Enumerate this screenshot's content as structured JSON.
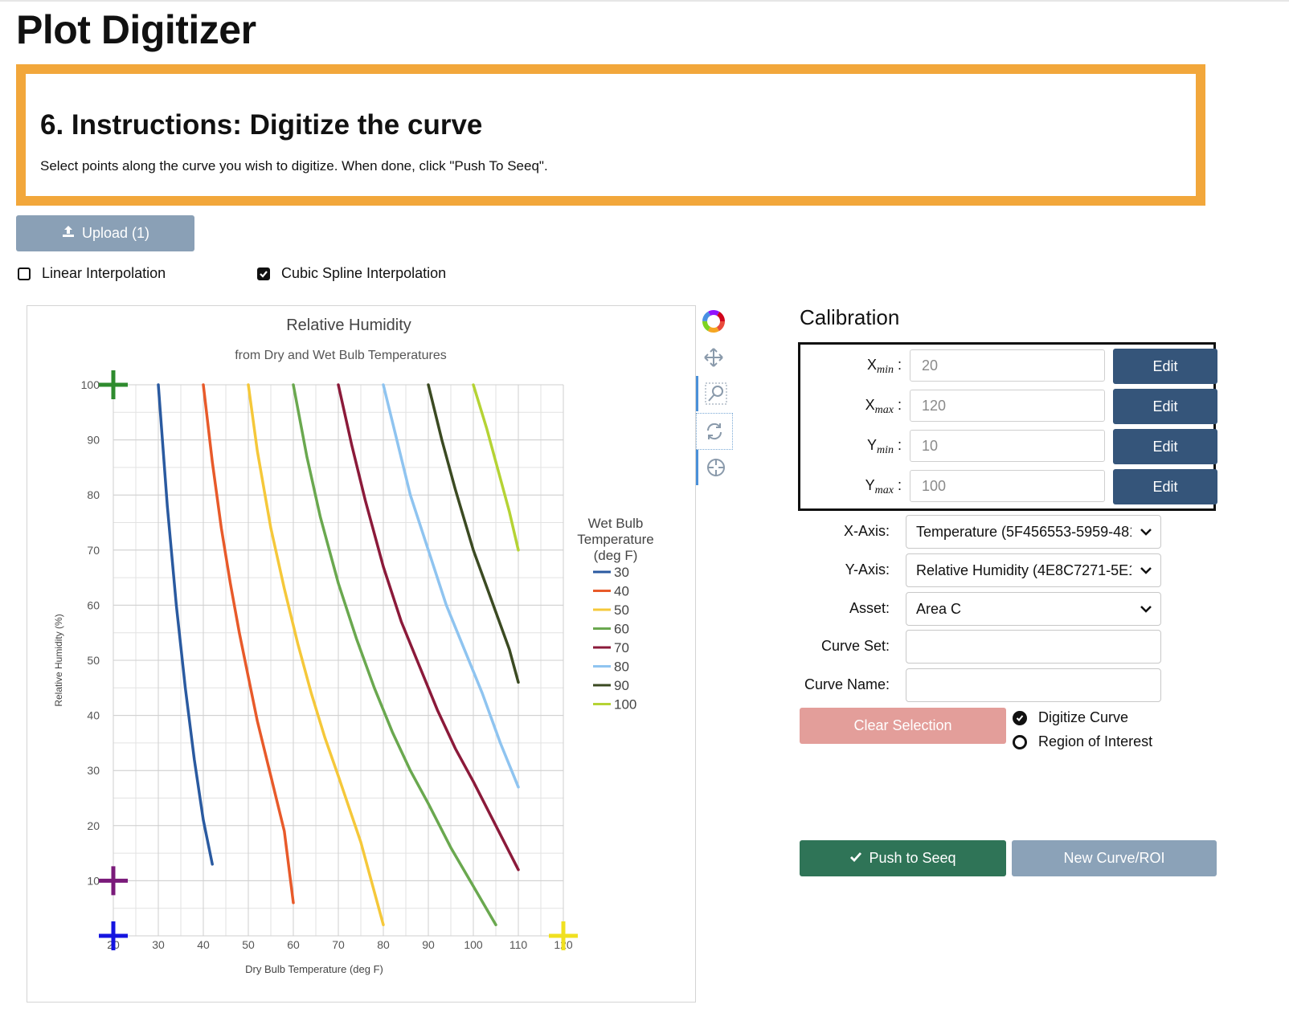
{
  "app": {
    "title": "Plot Digitizer"
  },
  "instructions": {
    "title": "6. Instructions: Digitize the curve",
    "text": "Select points along the curve you wish to digitize. When done, click \"Push To Seeq\"."
  },
  "upload": {
    "label": "Upload (1)",
    "icon": "upload-icon"
  },
  "interpolation": {
    "linear": {
      "label": "Linear Interpolation",
      "checked": false
    },
    "cubic": {
      "label": "Cubic Spline Interpolation",
      "checked": true
    }
  },
  "toolbar": {
    "tools": [
      "color-wheel-icon",
      "pan-arrows-icon",
      "zoom-box-icon",
      "reset-rotate-icon",
      "crosshair-icon"
    ]
  },
  "calibration": {
    "title": "Calibration",
    "rows": [
      {
        "sym": "X",
        "sub": "min",
        "value": "20",
        "edit": "Edit"
      },
      {
        "sym": "X",
        "sub": "max",
        "value": "120",
        "edit": "Edit"
      },
      {
        "sym": "Y",
        "sub": "min",
        "value": "10",
        "edit": "Edit"
      },
      {
        "sym": "Y",
        "sub": "max",
        "value": "100",
        "edit": "Edit"
      }
    ]
  },
  "form": {
    "x_axis": {
      "label": "X-Axis:",
      "value": "Temperature (5F456553-5959-481"
    },
    "y_axis": {
      "label": "Y-Axis:",
      "value": "Relative Humidity (4E8C7271-5E1"
    },
    "asset": {
      "label": "Asset:",
      "value": "Area C"
    },
    "curve_set": {
      "label": "Curve Set:",
      "value": ""
    },
    "curve_name": {
      "label": "Curve Name:",
      "value": ""
    }
  },
  "actions": {
    "clear": "Clear Selection",
    "mode_digitize": "Digitize Curve",
    "mode_roi": "Region of Interest",
    "push": "Push to Seeq",
    "new": "New Curve/ROI"
  },
  "colors": {
    "instruction_border": "#f2a73b",
    "edit_button": "#35557a",
    "push_button": "#2f7457",
    "clear_button": "#e39e9a",
    "muted_button": "#8ba2b8"
  },
  "chart_data": {
    "type": "line",
    "title": "Relative Humidity",
    "subtitle": "from Dry and Wet Bulb Temperatures",
    "xlabel": "Dry Bulb Temperature (deg F)",
    "ylabel": "Relative Humidity (%)",
    "xlim": [
      20,
      120
    ],
    "ylim": [
      0,
      100
    ],
    "xticks": [
      "20",
      "30",
      "40",
      "50",
      "60",
      "70",
      "80",
      "90",
      "100",
      "110",
      "120"
    ],
    "yticks": [
      "10",
      "20",
      "30",
      "40",
      "50",
      "60",
      "70",
      "80",
      "90",
      "100"
    ],
    "grid": true,
    "legend_title": "Wet Bulb Temperature (deg F)",
    "legend_position": "right",
    "series": [
      {
        "name": "30",
        "color": "#2a5aa0",
        "x": [
          30,
          32,
          34,
          36,
          38,
          40,
          42
        ],
        "y": [
          100,
          78,
          60,
          45,
          32,
          21,
          13
        ]
      },
      {
        "name": "40",
        "color": "#e85a2a",
        "x": [
          40,
          42,
          44,
          46,
          48,
          50,
          52,
          55,
          58,
          60
        ],
        "y": [
          100,
          86,
          74,
          64,
          55,
          47,
          39,
          29,
          19,
          6
        ]
      },
      {
        "name": "50",
        "color": "#f5c83a",
        "x": [
          50,
          52,
          55,
          58,
          61,
          64,
          67,
          70,
          75,
          80
        ],
        "y": [
          100,
          88,
          74,
          63,
          53,
          44,
          36,
          29,
          17,
          2
        ]
      },
      {
        "name": "60",
        "color": "#6aa84f",
        "x": [
          60,
          63,
          66,
          70,
          74,
          78,
          82,
          86,
          90,
          95,
          100,
          105
        ],
        "y": [
          100,
          87,
          76,
          64,
          54,
          45,
          37,
          30,
          24,
          16,
          9,
          2
        ]
      },
      {
        "name": "70",
        "color": "#8b1a3a",
        "x": [
          70,
          73,
          76,
          80,
          84,
          88,
          92,
          96,
          100,
          105,
          110
        ],
        "y": [
          100,
          89,
          79,
          67,
          57,
          49,
          41,
          34,
          28,
          20,
          12
        ]
      },
      {
        "name": "80",
        "color": "#8fc4f0",
        "x": [
          80,
          83,
          86,
          90,
          94,
          98,
          102,
          106,
          110
        ],
        "y": [
          100,
          90,
          80,
          70,
          60,
          52,
          44,
          35,
          27
        ]
      },
      {
        "name": "90",
        "color": "#3b4a22",
        "x": [
          90,
          93,
          96,
          100,
          104,
          108,
          110
        ],
        "y": [
          100,
          90,
          81,
          70,
          61,
          52,
          46
        ]
      },
      {
        "name": "100",
        "color": "#b5d334",
        "x": [
          100,
          103,
          106,
          108,
          110
        ],
        "y": [
          100,
          92,
          83,
          77,
          70
        ]
      }
    ],
    "calibration_markers": [
      {
        "name": "ymax-marker",
        "color": "#2e8b2e",
        "x": 20,
        "y": 100
      },
      {
        "name": "ymin-marker",
        "color": "#7a1a7a",
        "x": 20,
        "y": 10
      },
      {
        "name": "xmin-marker",
        "color": "#1515e0",
        "x": 20,
        "y": 0
      },
      {
        "name": "xmax-marker",
        "color": "#f0e020",
        "x": 120,
        "y": 0
      }
    ]
  }
}
